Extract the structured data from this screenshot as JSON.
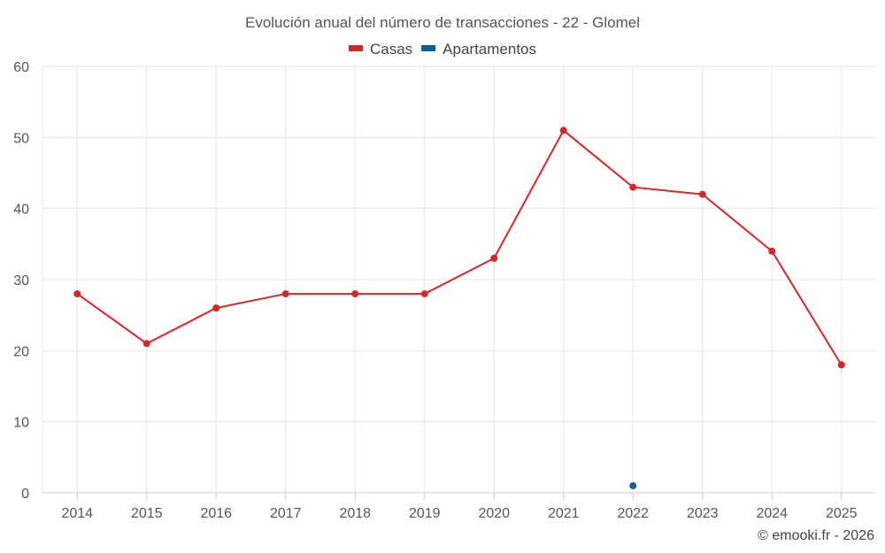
{
  "chart_data": {
    "type": "line",
    "title": "Evolución anual del número de transacciones - 22 - Glomel",
    "categories": [
      "2014",
      "2015",
      "2016",
      "2017",
      "2018",
      "2019",
      "2020",
      "2021",
      "2022",
      "2023",
      "2024",
      "2025"
    ],
    "series": [
      {
        "name": "Casas",
        "color": "#d62728",
        "values": [
          28,
          21,
          26,
          28,
          28,
          28,
          33,
          51,
          43,
          42,
          34,
          18
        ]
      },
      {
        "name": "Apartamentos",
        "color": "#0b5f99",
        "values": [
          null,
          null,
          null,
          null,
          null,
          null,
          null,
          null,
          1,
          null,
          null,
          null
        ]
      }
    ],
    "ylim": [
      0,
      60
    ],
    "yticks": [
      "0",
      "10",
      "20",
      "30",
      "40",
      "50",
      "60"
    ],
    "grid": true,
    "legend": "top-center",
    "xlabel": "",
    "ylabel": ""
  },
  "credit": "© emooki.fr - 2026"
}
